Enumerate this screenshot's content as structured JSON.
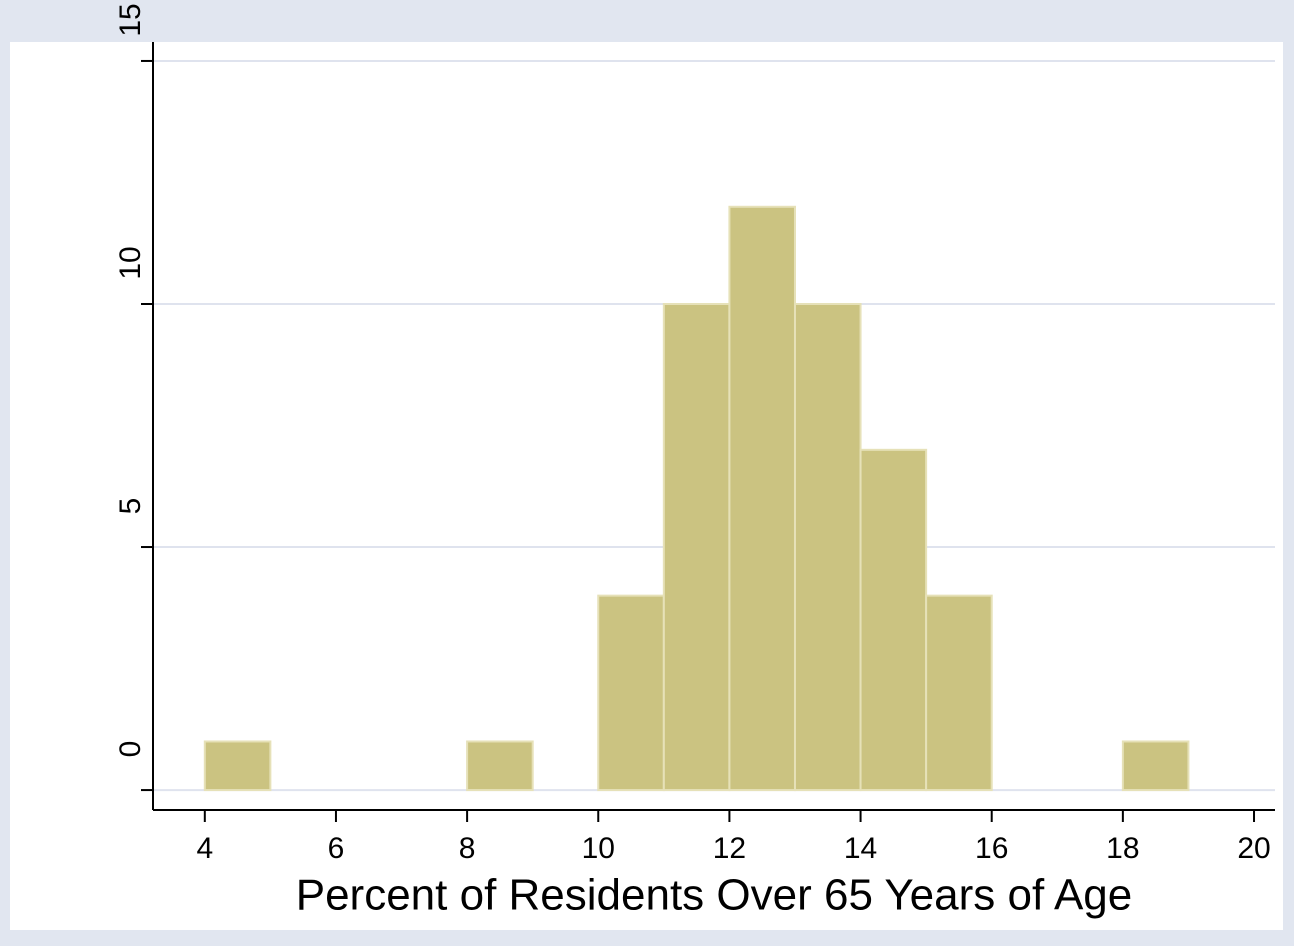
{
  "chart_data": {
    "type": "histogram",
    "xlabel": "Percent of Residents Over 65 Years of Age",
    "bins": [
      4,
      5,
      6,
      7,
      8,
      9,
      10,
      11,
      12,
      13,
      14,
      15,
      16,
      17,
      18,
      19
    ],
    "values": [
      1,
      0,
      0,
      0,
      1,
      0,
      4,
      10,
      12,
      10,
      7,
      4,
      0,
      0,
      1
    ],
    "color": "#cbc381",
    "xlim": [
      3.21,
      20.32
    ],
    "xticks": [
      4,
      6,
      8,
      10,
      12,
      14,
      16,
      18,
      20
    ],
    "ylim": [
      -0.41,
      15.39
    ],
    "yticks": [
      0,
      5,
      10,
      15
    ],
    "grid": true
  }
}
